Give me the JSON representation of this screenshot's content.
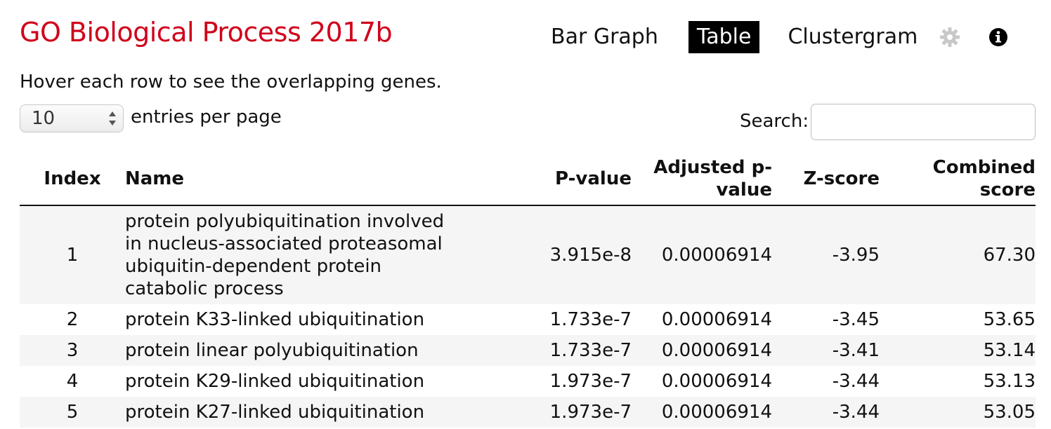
{
  "header": {
    "title": "GO Biological Process 2017b",
    "tabs": [
      {
        "label": "Bar Graph",
        "active": false
      },
      {
        "label": "Table",
        "active": true
      },
      {
        "label": "Clustergram",
        "active": false
      }
    ],
    "icons": {
      "settings": "gear-icon",
      "info": "info-icon"
    },
    "colors": {
      "title": "#d0021b",
      "active_tab_bg": "#000000"
    }
  },
  "hint": "Hover each row to see the overlapping genes.",
  "length": {
    "value": "10",
    "label": "entries per page"
  },
  "search": {
    "label": "Search:",
    "value": ""
  },
  "table": {
    "columns": {
      "index": "Index",
      "name": "Name",
      "pvalue": "P-value",
      "adjusted_line1": "Adjusted p-",
      "adjusted_line2": "value",
      "zscore": "Z-score",
      "combined_line1": "Combined",
      "combined_line2": "score"
    },
    "rows": [
      {
        "index": "1",
        "name_lines": [
          "protein polyubiquitination involved",
          "in nucleus-associated proteasomal",
          "ubiquitin-dependent protein",
          "catabolic process"
        ],
        "pvalue": "3.915e-8",
        "adjusted": "0.00006914",
        "zscore": "-3.95",
        "combined": "67.30"
      },
      {
        "index": "2",
        "name": "protein K33-linked ubiquitination",
        "pvalue": "1.733e-7",
        "adjusted": "0.00006914",
        "zscore": "-3.45",
        "combined": "53.65"
      },
      {
        "index": "3",
        "name": "protein linear polyubiquitination",
        "pvalue": "1.733e-7",
        "adjusted": "0.00006914",
        "zscore": "-3.41",
        "combined": "53.14"
      },
      {
        "index": "4",
        "name": "protein K29-linked ubiquitination",
        "pvalue": "1.973e-7",
        "adjusted": "0.00006914",
        "zscore": "-3.44",
        "combined": "53.13"
      },
      {
        "index": "5",
        "name": "protein K27-linked ubiquitination",
        "pvalue": "1.973e-7",
        "adjusted": "0.00006914",
        "zscore": "-3.44",
        "combined": "53.05"
      }
    ]
  }
}
